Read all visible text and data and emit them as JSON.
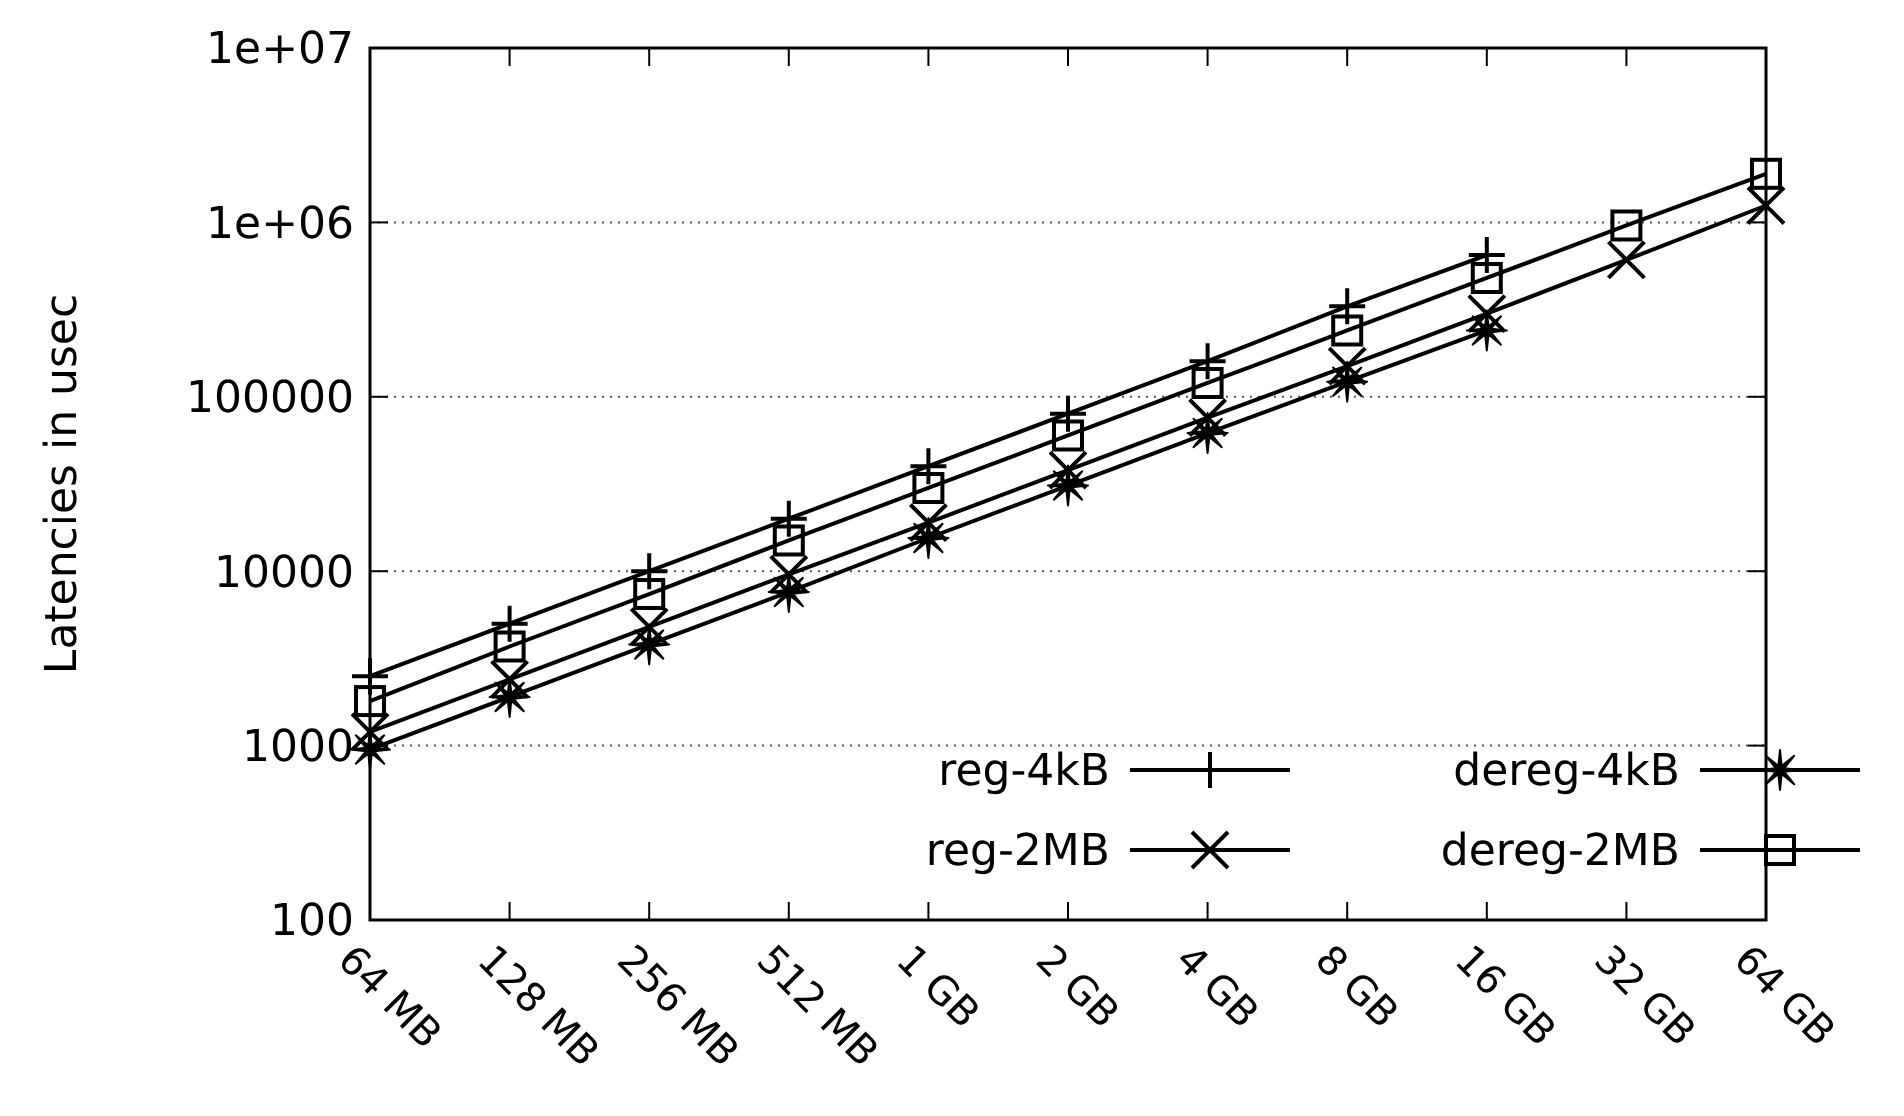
{
  "chart_data": {
    "type": "line",
    "ylabel": "Latencies in usec",
    "categories": [
      "64 MB",
      "128 MB",
      "256 MB",
      "512 MB",
      "1 GB",
      "2 GB",
      "4 GB",
      "8 GB",
      "16 GB",
      "32 GB",
      "64 GB"
    ],
    "log": "y",
    "ylim": [
      100,
      10000000
    ],
    "yticks": [
      {
        "value": 100,
        "label": "100"
      },
      {
        "value": 1000,
        "label": "1000"
      },
      {
        "value": 10000,
        "label": "10000"
      },
      {
        "value": 100000,
        "label": "100000"
      },
      {
        "value": 1000000,
        "label": "1e+06"
      },
      {
        "value": 10000000,
        "label": "1e+07"
      }
    ],
    "grid": "y",
    "legend": "bottom right",
    "line_style": "solid",
    "series": [
      {
        "name": "reg-4kB",
        "color": "#000000",
        "marker": "plus",
        "values": [
          2500,
          5000,
          10000,
          20000,
          40000,
          80000,
          160000,
          330000,
          650000,
          null,
          null
        ]
      },
      {
        "name": "reg-2MB",
        "color": "#000000",
        "marker": "cross",
        "values": [
          1200,
          2400,
          4800,
          9600,
          19000,
          38000,
          76000,
          150000,
          300000,
          610000,
          1250000
        ]
      },
      {
        "name": "dereg-4kB",
        "color": "#000000",
        "marker": "star",
        "values": [
          950,
          1900,
          3800,
          7600,
          15500,
          31000,
          62000,
          122000,
          240000,
          null,
          null
        ]
      },
      {
        "name": "dereg-2MB",
        "color": "#000000",
        "marker": "square",
        "values": [
          1800,
          3700,
          7400,
          15000,
          30000,
          60000,
          120000,
          240000,
          480000,
          960000,
          1900000
        ]
      }
    ]
  }
}
